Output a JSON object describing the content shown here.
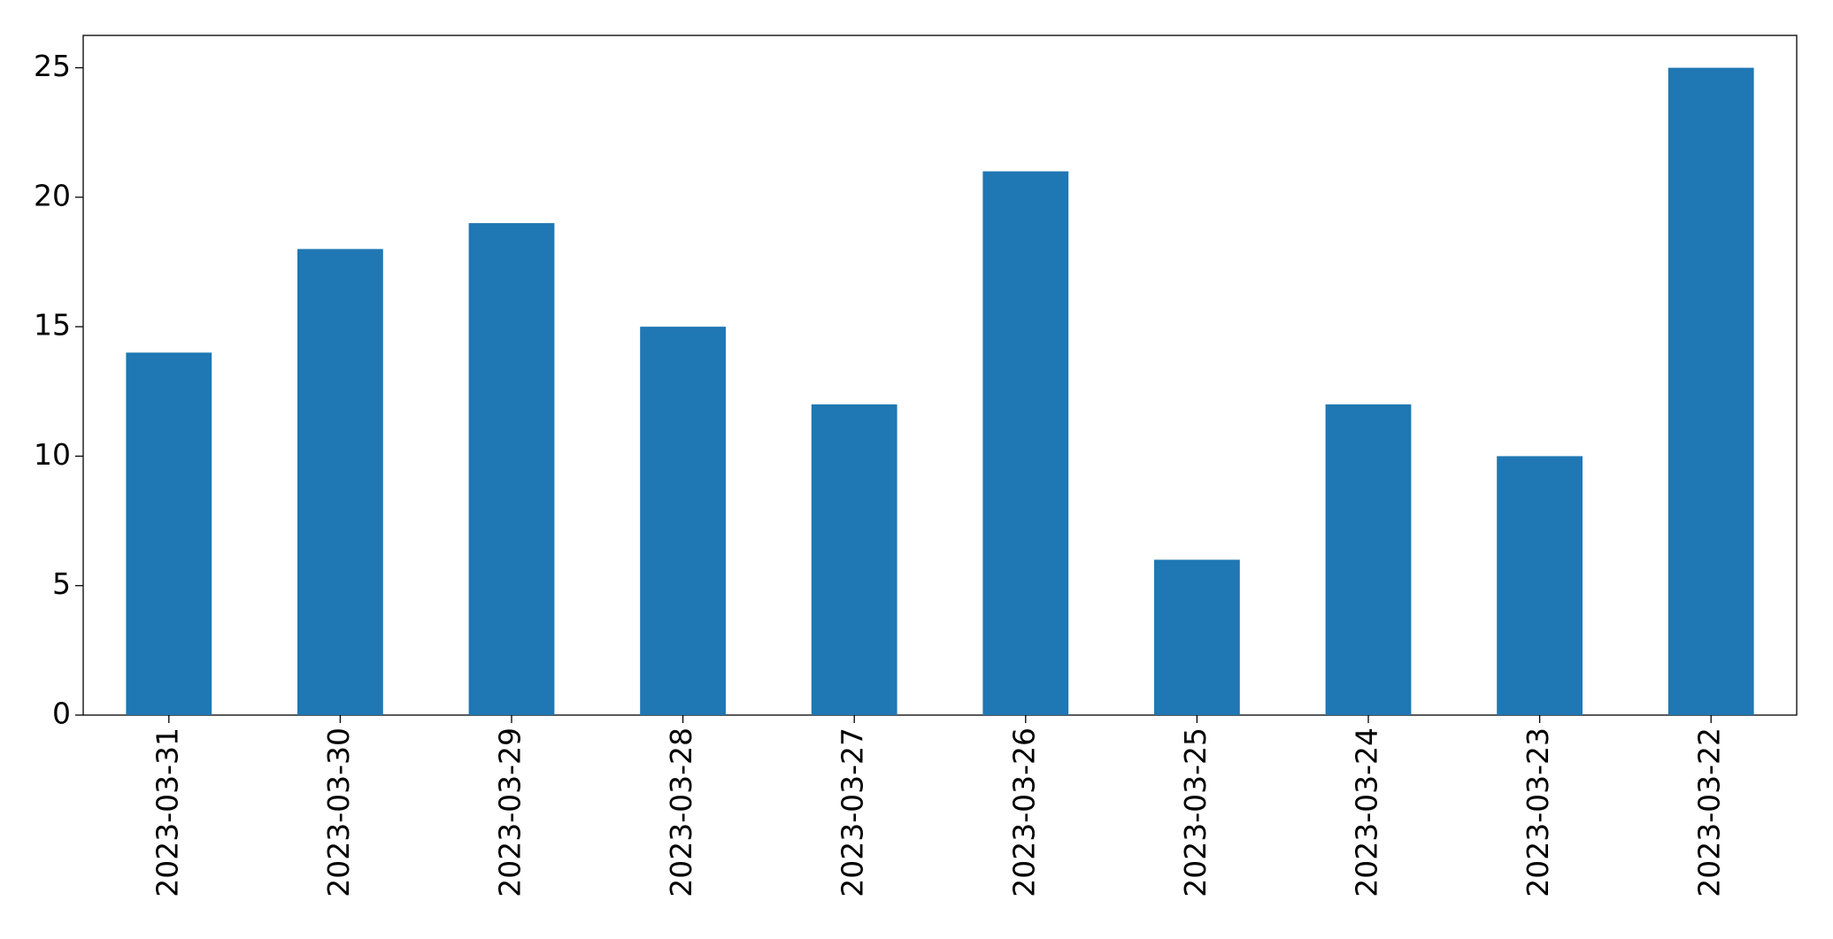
{
  "chart_data": {
    "type": "bar",
    "categories": [
      "2023-03-31",
      "2023-03-30",
      "2023-03-29",
      "2023-03-28",
      "2023-03-27",
      "2023-03-26",
      "2023-03-25",
      "2023-03-24",
      "2023-03-23",
      "2023-03-22"
    ],
    "values": [
      14,
      18,
      19,
      15,
      12,
      21,
      6,
      12,
      10,
      25
    ],
    "color": "#1f77b4",
    "ylim": [
      0,
      26.25
    ],
    "yticks": [
      0,
      5,
      10,
      15,
      20,
      25
    ],
    "grid": false
  }
}
